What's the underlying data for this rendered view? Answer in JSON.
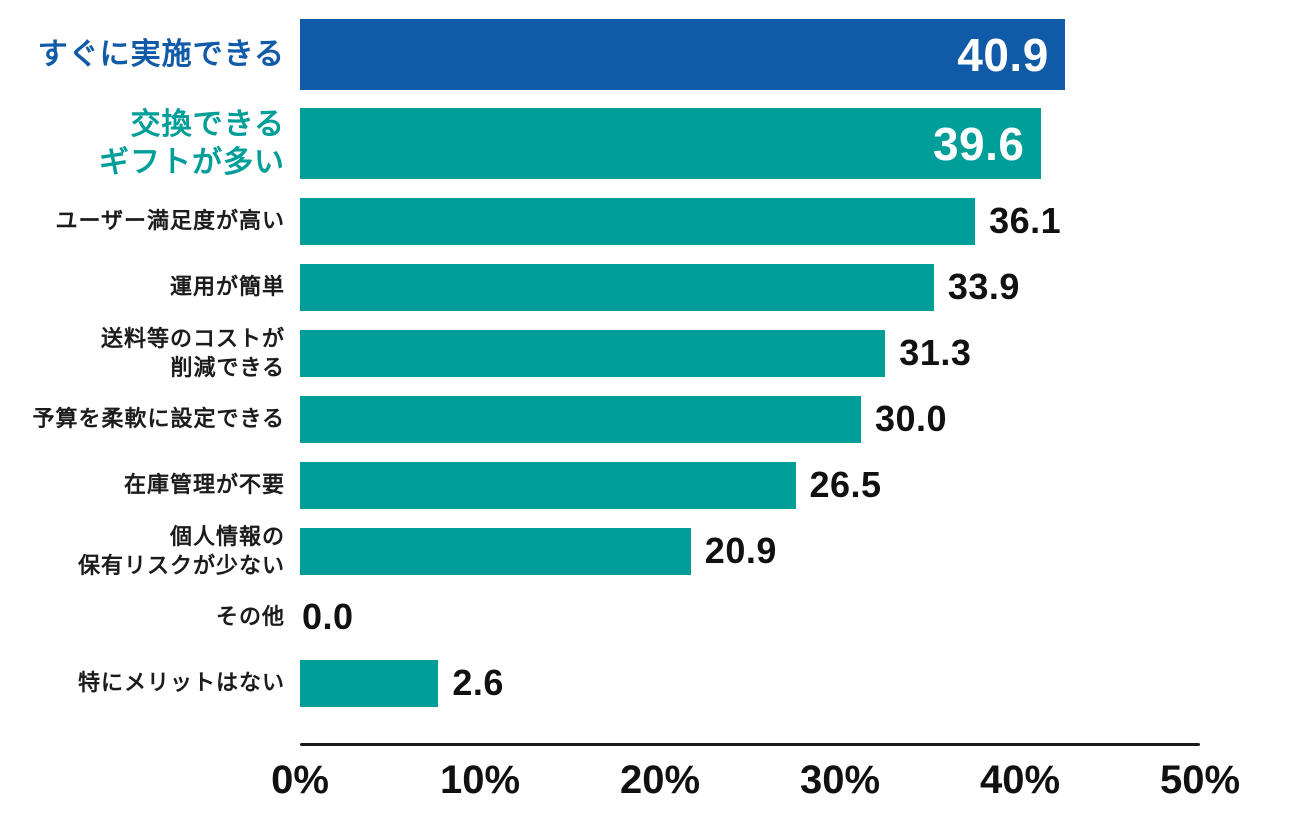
{
  "chart_data": {
    "type": "bar",
    "orientation": "horizontal",
    "title": "",
    "xlabel": "",
    "ylabel": "",
    "x_ticks": [
      "0%",
      "10%",
      "20%",
      "30%",
      "40%",
      "50%"
    ],
    "xlim": [
      0,
      50
    ],
    "grid": false,
    "legend": false,
    "min_bar_display_percent": 7.4,
    "categories": [
      "すぐに実施できる",
      "交換できる\nギフトが多い",
      "ユーザー満足度が高い",
      "運用が簡単",
      "送料等のコストが\n削減できる",
      "予算を柔軟に設定できる",
      "在庫管理が不要",
      "個人情報の\n保有リスクが少ない",
      "その他",
      "特にメリットはない"
    ],
    "values": [
      40.9,
      39.6,
      36.1,
      33.9,
      31.3,
      30.0,
      26.5,
      20.9,
      0.0,
      2.6
    ],
    "items": [
      {
        "label_lines": [
          "すぐに実施できる"
        ],
        "value": 40.9,
        "value_label": "40.9",
        "emphasis": "primary"
      },
      {
        "label_lines": [
          "交換できる",
          "ギフトが多い"
        ],
        "value": 39.6,
        "value_label": "39.6",
        "emphasis": "secondary"
      },
      {
        "label_lines": [
          "ユーザー満足度が高い"
        ],
        "value": 36.1,
        "value_label": "36.1",
        "emphasis": "none"
      },
      {
        "label_lines": [
          "運用が簡単"
        ],
        "value": 33.9,
        "value_label": "33.9",
        "emphasis": "none"
      },
      {
        "label_lines": [
          "送料等のコストが",
          "削減できる"
        ],
        "value": 31.3,
        "value_label": "31.3",
        "emphasis": "none"
      },
      {
        "label_lines": [
          "予算を柔軟に設定できる"
        ],
        "value": 30.0,
        "value_label": "30.0",
        "emphasis": "none"
      },
      {
        "label_lines": [
          "在庫管理が不要"
        ],
        "value": 26.5,
        "value_label": "26.5",
        "emphasis": "none"
      },
      {
        "label_lines": [
          "個人情報の",
          "保有リスクが少ない"
        ],
        "value": 20.9,
        "value_label": "20.9",
        "emphasis": "none"
      },
      {
        "label_lines": [
          "その他"
        ],
        "value": 0.0,
        "value_label": "0.0",
        "emphasis": "none"
      },
      {
        "label_lines": [
          "特にメリットはない"
        ],
        "value": 2.6,
        "value_label": "2.6",
        "emphasis": "none"
      }
    ],
    "colors": {
      "bar_primary": "#105AA8",
      "bar_secondary": "#009E98",
      "label_primary": "#105AA8",
      "label_secondary": "#009E98",
      "label_default": "#1C1C1C",
      "value_inside": "#FFFFFF",
      "value_outside": "#111111",
      "axis_line": "#1A1A1A",
      "tick_text": "#111111",
      "background": "#FFFFFF"
    }
  }
}
